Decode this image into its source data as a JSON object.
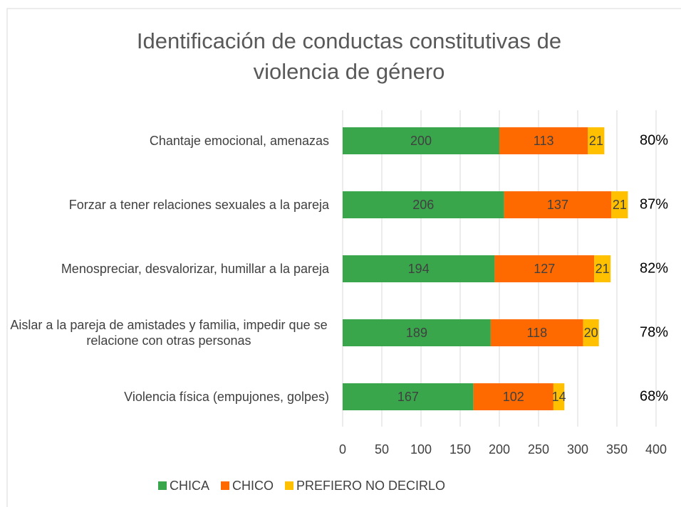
{
  "chart_data": {
    "type": "bar",
    "orientation": "horizontal",
    "stacked": true,
    "title": "Identificación de conductas constitutivas de violencia de género",
    "categories": [
      "Chantaje emocional, amenazas",
      "Forzar a tener relaciones sexuales a la pareja",
      "Menospreciar, desvalorizar, humillar a la pareja",
      "Aislar a la pareja de amistades y familia, impedir que se relacione con otras personas",
      "Violencia física (empujones, golpes)"
    ],
    "series": [
      {
        "name": "CHICA",
        "color": "#3aa64c",
        "values": [
          200,
          206,
          194,
          189,
          167
        ]
      },
      {
        "name": "CHICO",
        "color": "#ff6a00",
        "values": [
          113,
          137,
          127,
          118,
          102
        ]
      },
      {
        "name": "PREFIERO NO DECIRLO",
        "color": "#ffc000",
        "values": [
          21,
          21,
          21,
          20,
          14
        ]
      }
    ],
    "annotations": [
      "80%",
      "87%",
      "82%",
      "78%",
      "68%"
    ],
    "xlim": [
      0,
      400
    ],
    "xticks": [
      0,
      50,
      100,
      150,
      200,
      250,
      300,
      350,
      400
    ],
    "grid": true,
    "legend": "bottom"
  }
}
